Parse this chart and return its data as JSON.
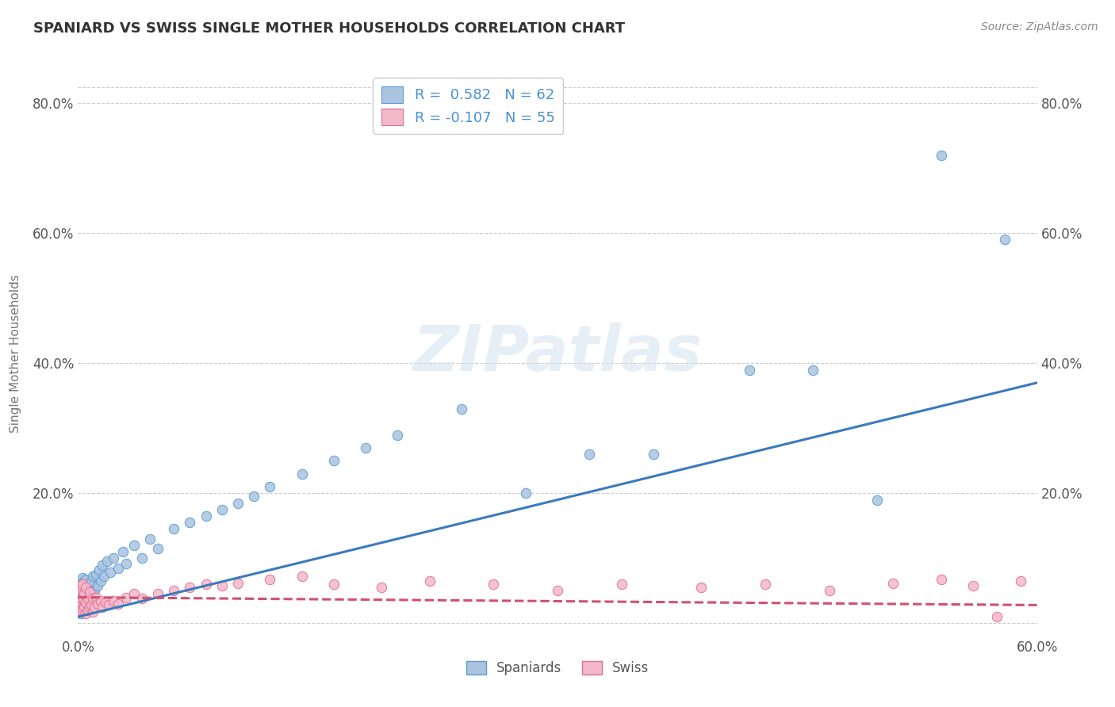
{
  "title": "SPANIARD VS SWISS SINGLE MOTHER HOUSEHOLDS CORRELATION CHART",
  "source": "Source: ZipAtlas.com",
  "ylabel": "Single Mother Households",
  "xlim": [
    0.0,
    0.6
  ],
  "ylim": [
    -0.02,
    0.85
  ],
  "xtick_positions": [
    0.0,
    0.1,
    0.2,
    0.3,
    0.4,
    0.5,
    0.6
  ],
  "xticklabels": [
    "0.0%",
    "",
    "",
    "",
    "",
    "",
    "60.0%"
  ],
  "ytick_positions": [
    0.0,
    0.2,
    0.4,
    0.6,
    0.8
  ],
  "yticklabels": [
    "",
    "20.0%",
    "40.0%",
    "60.0%",
    "80.0%"
  ],
  "spaniard_fill_color": "#aac4e0",
  "spaniard_edge_color": "#5b9bd5",
  "swiss_fill_color": "#f4b8cb",
  "swiss_edge_color": "#e07090",
  "spaniard_line_color": "#3a7abf",
  "swiss_line_color": "#d05070",
  "legend_spaniard_color": "#aac4e0",
  "legend_swiss_color": "#f4b8cb",
  "watermark_text": "ZIPatlas",
  "legend_label_spaniard": "R =  0.582   N = 62",
  "legend_label_swiss": "R = -0.107   N = 55",
  "spaniard_x": [
    0.001,
    0.001,
    0.001,
    0.002,
    0.002,
    0.002,
    0.002,
    0.003,
    0.003,
    0.003,
    0.003,
    0.004,
    0.004,
    0.004,
    0.005,
    0.005,
    0.005,
    0.006,
    0.006,
    0.007,
    0.007,
    0.008,
    0.008,
    0.009,
    0.009,
    0.01,
    0.011,
    0.012,
    0.013,
    0.014,
    0.015,
    0.016,
    0.018,
    0.02,
    0.022,
    0.025,
    0.028,
    0.03,
    0.035,
    0.04,
    0.045,
    0.05,
    0.06,
    0.07,
    0.08,
    0.09,
    0.1,
    0.11,
    0.12,
    0.14,
    0.16,
    0.18,
    0.2,
    0.24,
    0.28,
    0.32,
    0.36,
    0.42,
    0.46,
    0.5,
    0.54,
    0.58
  ],
  "spaniard_y": [
    0.02,
    0.035,
    0.055,
    0.015,
    0.028,
    0.04,
    0.06,
    0.022,
    0.038,
    0.05,
    0.07,
    0.025,
    0.042,
    0.065,
    0.03,
    0.045,
    0.068,
    0.035,
    0.055,
    0.038,
    0.06,
    0.042,
    0.065,
    0.048,
    0.072,
    0.05,
    0.075,
    0.058,
    0.082,
    0.065,
    0.09,
    0.072,
    0.095,
    0.078,
    0.1,
    0.085,
    0.11,
    0.092,
    0.12,
    0.1,
    0.13,
    0.115,
    0.145,
    0.155,
    0.165,
    0.175,
    0.185,
    0.195,
    0.21,
    0.23,
    0.25,
    0.27,
    0.29,
    0.33,
    0.2,
    0.26,
    0.26,
    0.39,
    0.39,
    0.19,
    0.72,
    0.59
  ],
  "swiss_x": [
    0.001,
    0.001,
    0.001,
    0.002,
    0.002,
    0.002,
    0.003,
    0.003,
    0.003,
    0.004,
    0.004,
    0.005,
    0.005,
    0.005,
    0.006,
    0.006,
    0.007,
    0.007,
    0.008,
    0.009,
    0.009,
    0.01,
    0.011,
    0.012,
    0.014,
    0.015,
    0.017,
    0.019,
    0.022,
    0.025,
    0.03,
    0.035,
    0.04,
    0.05,
    0.06,
    0.07,
    0.08,
    0.09,
    0.1,
    0.12,
    0.14,
    0.16,
    0.19,
    0.22,
    0.26,
    0.3,
    0.34,
    0.39,
    0.43,
    0.47,
    0.51,
    0.54,
    0.56,
    0.575,
    0.59
  ],
  "swiss_y": [
    0.018,
    0.03,
    0.05,
    0.02,
    0.038,
    0.058,
    0.022,
    0.04,
    0.06,
    0.025,
    0.045,
    0.015,
    0.032,
    0.055,
    0.02,
    0.038,
    0.025,
    0.048,
    0.028,
    0.018,
    0.038,
    0.025,
    0.04,
    0.03,
    0.035,
    0.025,
    0.032,
    0.028,
    0.035,
    0.03,
    0.04,
    0.045,
    0.038,
    0.045,
    0.05,
    0.055,
    0.06,
    0.058,
    0.062,
    0.068,
    0.072,
    0.06,
    0.055,
    0.065,
    0.06,
    0.05,
    0.06,
    0.055,
    0.06,
    0.05,
    0.062,
    0.068,
    0.058,
    0.01,
    0.065
  ],
  "spaniard_line_start_x": 0.0,
  "spaniard_line_end_x": 0.6,
  "spaniard_line_start_y": 0.01,
  "spaniard_line_end_y": 0.37,
  "swiss_line_start_x": 0.0,
  "swiss_line_end_x": 0.6,
  "swiss_line_start_y": 0.04,
  "swiss_line_end_y": 0.028
}
